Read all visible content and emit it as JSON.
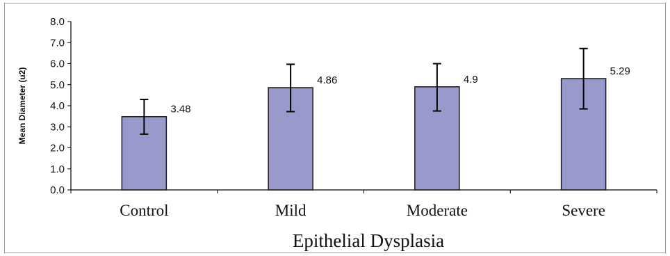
{
  "chart_data": {
    "type": "bar",
    "title": "",
    "xlabel": "Epithelial Dysplasia",
    "ylabel": "Mean Diameter (u2)",
    "categories": [
      "Control",
      "Mild",
      "Moderate",
      "Severe"
    ],
    "values": [
      3.48,
      4.86,
      4.9,
      5.29
    ],
    "data_labels": [
      "3.48",
      "4.86",
      "4.9",
      "5.29"
    ],
    "error_bars": {
      "lower": [
        2.65,
        3.72,
        3.75,
        3.85
      ],
      "upper": [
        4.3,
        5.97,
        6.0,
        6.72
      ]
    },
    "ylim": [
      0,
      8
    ],
    "yticks": [
      "0.0",
      "1.0",
      "2.0",
      "3.0",
      "4.0",
      "5.0",
      "6.0",
      "7.0",
      "8.0"
    ],
    "grid": false,
    "legend": "none",
    "colors": {
      "bar_fill": "#9999cc",
      "bar_stroke": "#1a1a1a",
      "axis": "#000000",
      "frame": "#9a9a9a"
    }
  }
}
